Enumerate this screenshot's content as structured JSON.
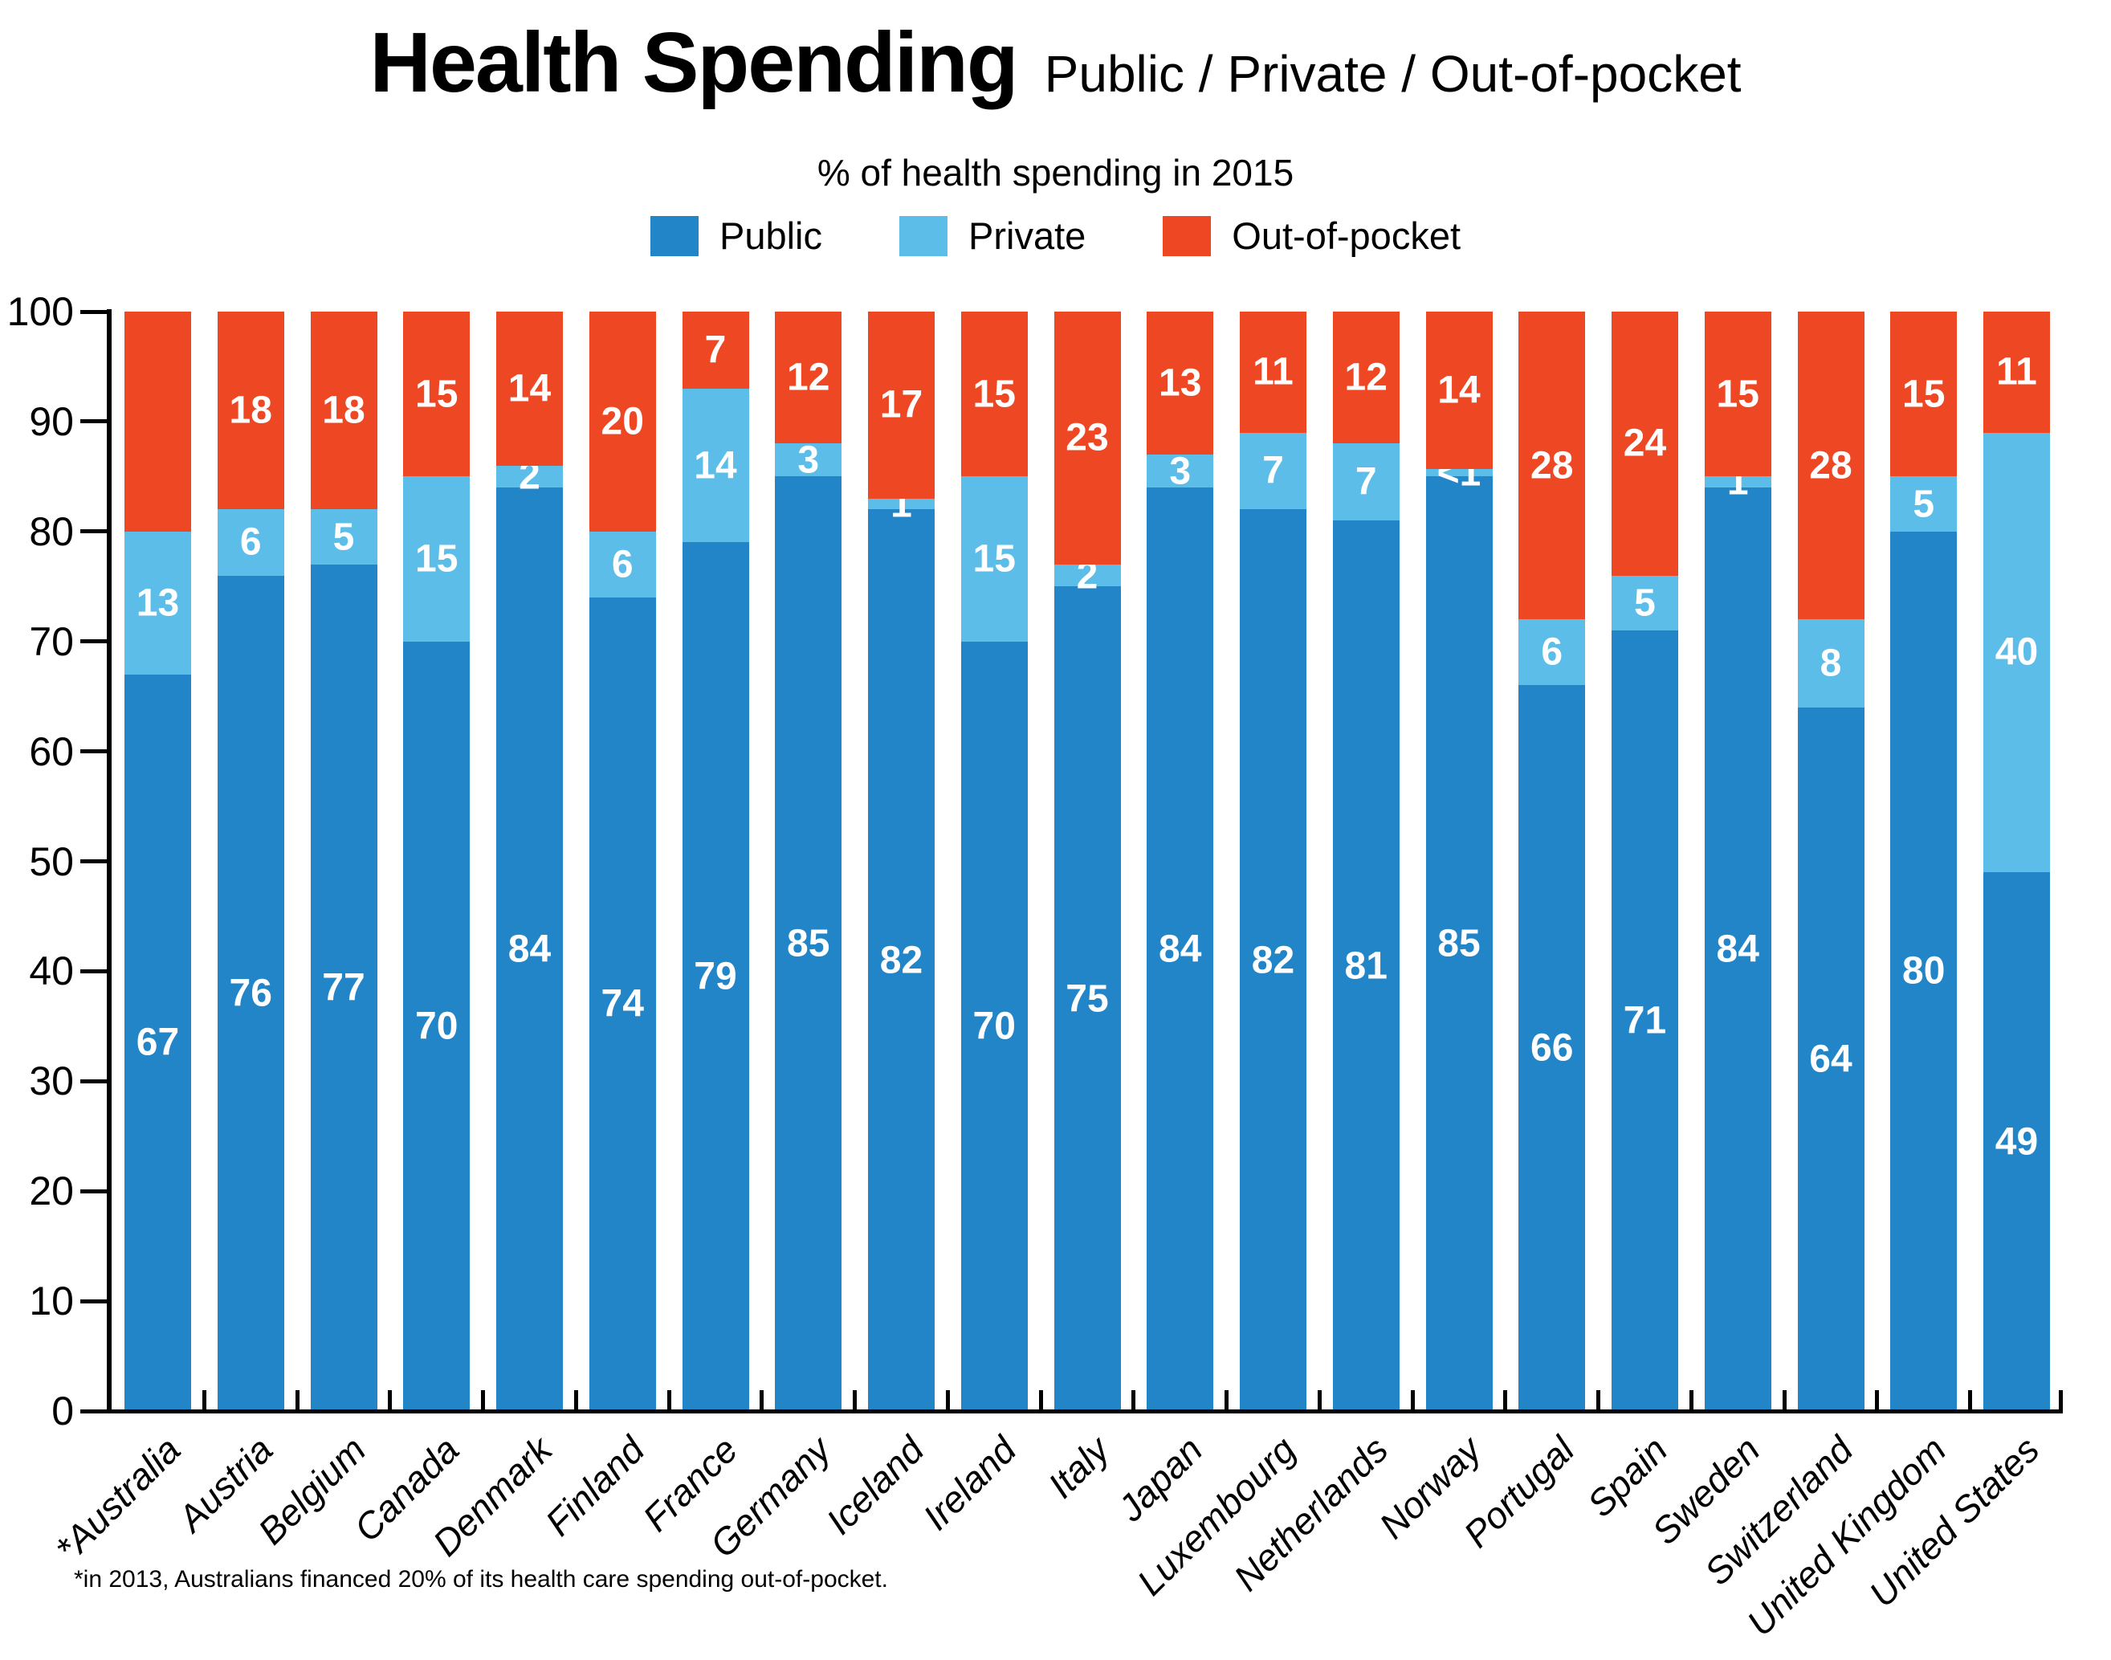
{
  "title": {
    "main": "Health Spending",
    "inline_subtitle": "Public / Private / Out-of-pocket",
    "subtitle": "% of health spending in 2015"
  },
  "legend": [
    {
      "label": "Public",
      "color": "#2285c7"
    },
    {
      "label": "Private",
      "color": "#5cbde9"
    },
    {
      "label": "Out-of-pocket",
      "color": "#ee4723"
    }
  ],
  "footnote": "*in 2013, Australians financed 20% of its health care spending out-of-pocket.",
  "y_axis": {
    "ticks": [
      0,
      10,
      20,
      30,
      40,
      50,
      60,
      70,
      80,
      90,
      100
    ]
  },
  "chart_data": {
    "type": "bar",
    "stacked": true,
    "title": "Health Spending Public / Private / Out-of-pocket",
    "subtitle": "% of health spending in 2015",
    "ylim": [
      0,
      100
    ],
    "grid": false,
    "legend_position": "top",
    "categories": [
      "*Australia",
      "Austria",
      "Belgium",
      "Canada",
      "Denmark",
      "Finland",
      "France",
      "Germany",
      "Iceland",
      "Ireland",
      "Italy",
      "Japan",
      "Luxembourg",
      "Netherlands",
      "Norway",
      "Portugal",
      "Spain",
      "Sweden",
      "Switzerland",
      "United Kingdom",
      "United States"
    ],
    "series": [
      {
        "name": "Public",
        "color": "#2285c7",
        "values": [
          67,
          76,
          77,
          70,
          84,
          74,
          79,
          85,
          82,
          70,
          75,
          84,
          82,
          81,
          85,
          66,
          71,
          84,
          64,
          80,
          49
        ],
        "display_labels": [
          "67",
          "76",
          "77",
          "70",
          "84",
          "74",
          "79",
          "85",
          "82",
          "70",
          "75",
          "84",
          "82",
          "81",
          "85",
          "66",
          "71",
          "84",
          "64",
          "80",
          "49"
        ]
      },
      {
        "name": "Private",
        "color": "#5cbde9",
        "values": [
          13,
          6,
          5,
          15,
          2,
          6,
          14,
          3,
          1,
          15,
          2,
          3,
          7,
          7,
          0.7,
          6,
          5,
          1,
          8,
          5,
          40
        ],
        "display_labels": [
          "13",
          "6",
          "5",
          "15",
          "2",
          "6",
          "14",
          "3",
          "1",
          "15",
          "2",
          "3",
          "7",
          "7",
          "<1",
          "6",
          "5",
          "1",
          "8",
          "5",
          "40"
        ]
      },
      {
        "name": "Out-of-pocket",
        "color": "#ee4723",
        "values": [
          20,
          18,
          18,
          15,
          14,
          20,
          7,
          12,
          17,
          15,
          23,
          13,
          11,
          12,
          14.3,
          28,
          24,
          15,
          28,
          15,
          11
        ],
        "display_labels": [
          "",
          "18",
          "18",
          "15",
          "14",
          "20",
          "7",
          "12",
          "17",
          "15",
          "23",
          "13",
          "11",
          "12",
          "14",
          "28",
          "24",
          "15",
          "28",
          "15",
          "11"
        ],
        "hatched_category_index": 0,
        "hatch_note": "Australia top segment shown as diagonal white hatching (value not printed)"
      }
    ]
  }
}
